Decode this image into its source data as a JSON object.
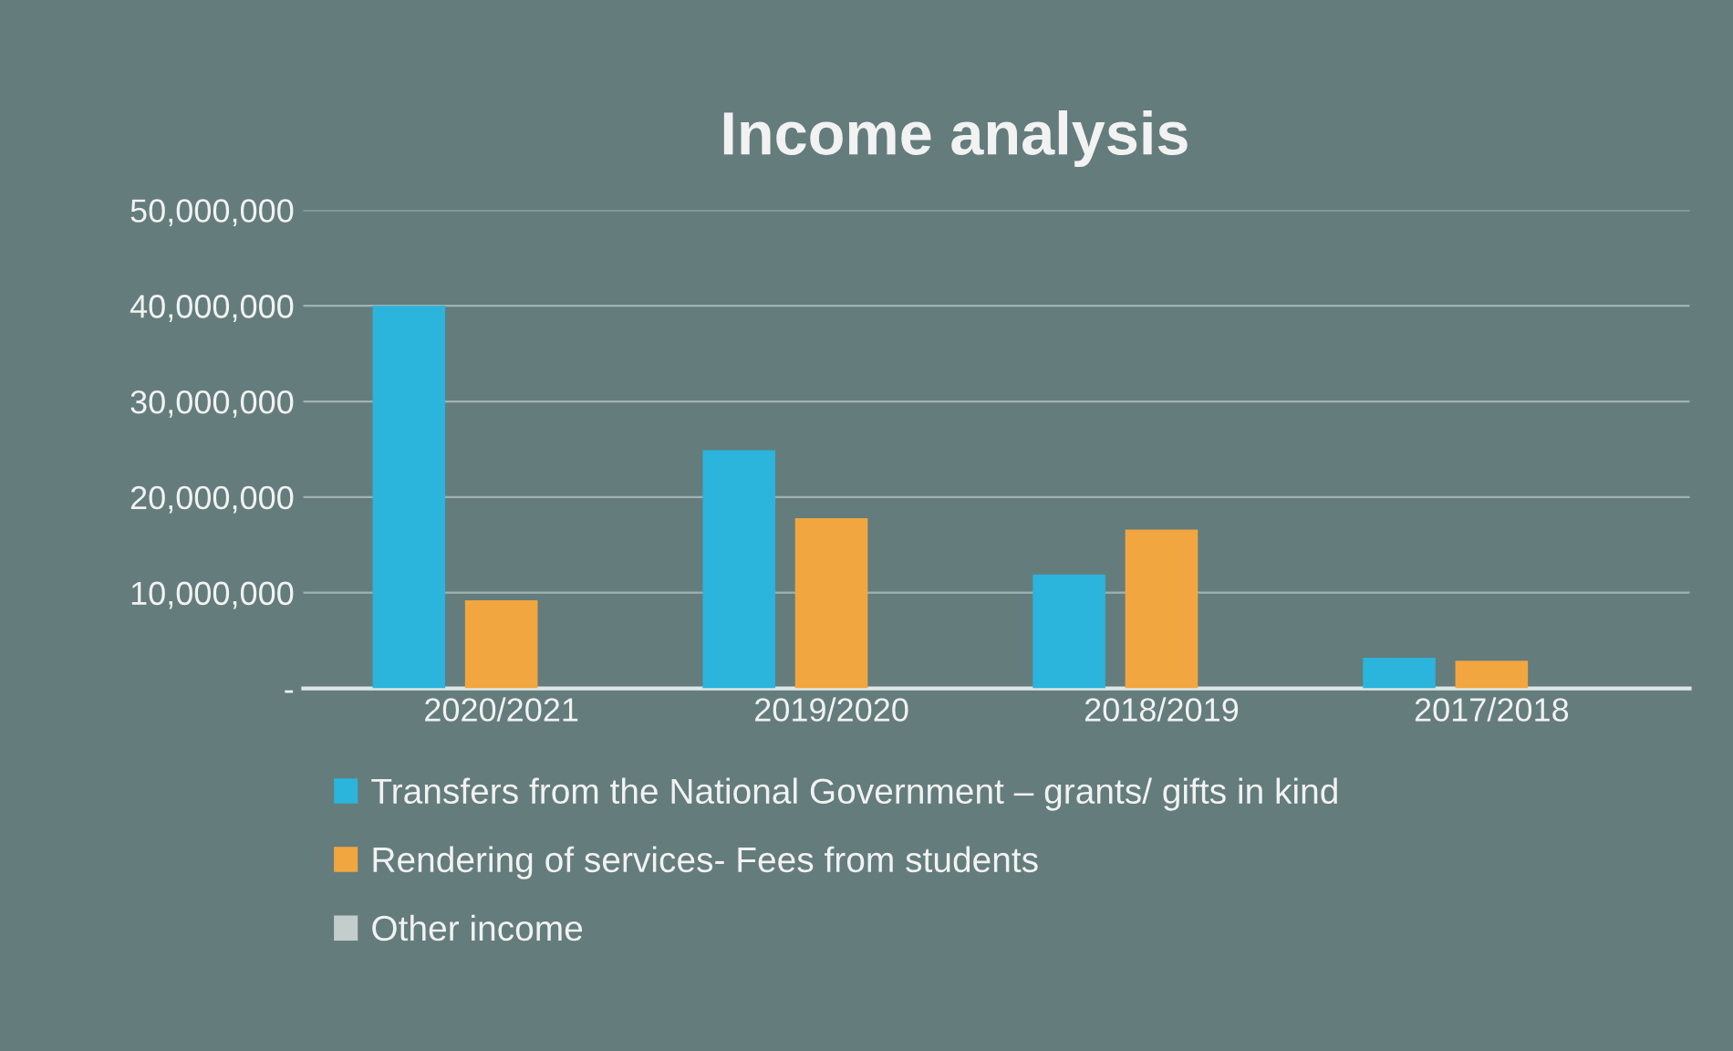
{
  "chart_data": {
    "type": "bar",
    "title": "Income analysis",
    "categories": [
      "2020/2021",
      "2019/2020",
      "2018/2019",
      "2017/2018"
    ],
    "series": [
      {
        "name": "Transfers from the National Government – grants/ gifts in kind",
        "color": "#2bb4dc",
        "values": [
          40000000,
          24900000,
          11900000,
          3200000
        ]
      },
      {
        "name": "Rendering of services- Fees from students",
        "color": "#f2a640",
        "values": [
          9200000,
          17800000,
          16600000,
          2900000
        ]
      },
      {
        "name": "Other income",
        "color": "#c4cccc",
        "values": [
          null,
          null,
          null,
          null
        ]
      }
    ],
    "ylim": [
      0,
      50000000
    ],
    "yticks": [
      {
        "value": 0,
        "label": "-"
      },
      {
        "value": 10000000,
        "label": "10,000,000"
      },
      {
        "value": 20000000,
        "label": "20,000,000"
      },
      {
        "value": 30000000,
        "label": "30,000,000"
      },
      {
        "value": 40000000,
        "label": "40,000,000"
      },
      {
        "value": 50000000,
        "label": "50,000,000"
      }
    ],
    "grid": "y",
    "legend": "bottom"
  }
}
